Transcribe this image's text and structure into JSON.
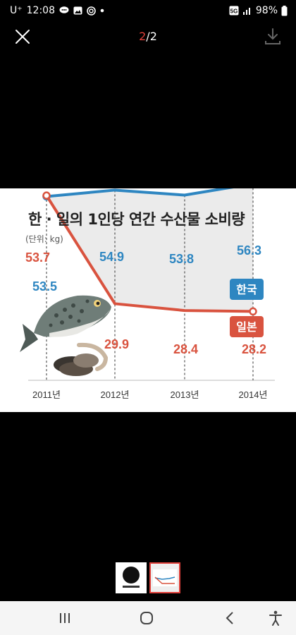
{
  "status_bar": {
    "carrier": "U⁺",
    "time": "12:08",
    "network": "5G",
    "battery": "98%"
  },
  "viewer": {
    "current_page": "2",
    "page_separator": "/2"
  },
  "chart_data": {
    "type": "line",
    "title": "한 · 일의 1인당 연간 수산물 소비량",
    "unit": "(단위: kg)",
    "categories": [
      "2011년",
      "2012년",
      "2013년",
      "2014년"
    ],
    "series": [
      {
        "name": "한국",
        "color": "#2e86c1",
        "values": [
          53.5,
          54.9,
          53.8,
          56.3
        ],
        "labels": [
          "53.5",
          "54.9",
          "53.8",
          "56.3"
        ]
      },
      {
        "name": "일본",
        "color": "#d9533f",
        "values": [
          53.7,
          29.9,
          28.4,
          28.2
        ],
        "labels": [
          "53.7",
          "29.9",
          "28.4",
          "28.2"
        ]
      }
    ],
    "ylim": [
      20,
      60
    ]
  },
  "colors": {
    "accent": "#e0403a",
    "korea": "#2e86c1",
    "japan": "#d9533f"
  },
  "icons": [
    "close-icon",
    "download-icon",
    "recent-apps-icon",
    "home-icon",
    "back-icon",
    "accessibility-icon"
  ]
}
